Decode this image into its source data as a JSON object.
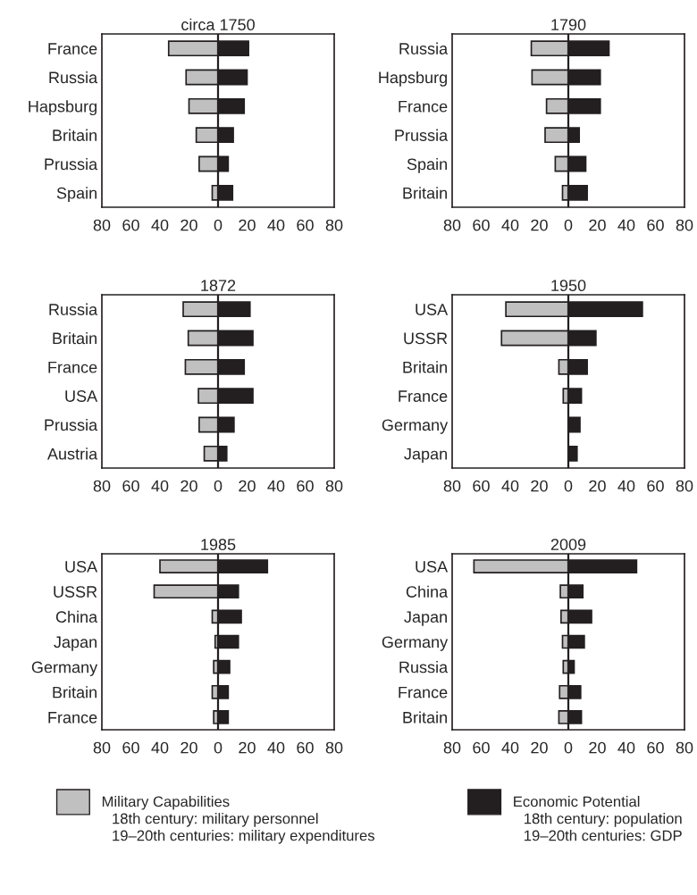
{
  "chart_data": [
    {
      "type": "bar",
      "orientation": "horizontal",
      "stacked": true,
      "title": "circa 1750",
      "categories": [
        "France",
        "Russia",
        "Hapsburg",
        "Britain",
        "Prussia",
        "Spain"
      ],
      "series": [
        {
          "name": "Military Capabilities",
          "color": "#c0c0c0",
          "values": [
            -34,
            -22,
            -20,
            -15,
            -13,
            -4
          ]
        },
        {
          "name": "Economic Potential",
          "color": "#231f20",
          "values": [
            21,
            20,
            18,
            10.5,
            7,
            10
          ]
        }
      ],
      "annotations": [
        "18th century: military personnel",
        "19–20th centuries: military expenditures",
        "18th century: population",
        "19–20th centuries: GDP"
      ],
      "xlim": [
        -80,
        80
      ],
      "xticks": [
        {
          "value": -80,
          "label": "80"
        },
        {
          "value": -60,
          "label": "60"
        },
        {
          "value": -40,
          "label": "40"
        },
        {
          "value": -20,
          "label": "20"
        },
        0,
        20,
        40,
        60,
        80
      ],
      "ref_lines": [
        {
          "axis": "x",
          "value": 0,
          "color": "#231f20"
        }
      ],
      "legend": "bottom"
    },
    {
      "type": "bar",
      "orientation": "horizontal",
      "stacked": true,
      "title": "1790",
      "categories": [
        "Russia",
        "Hapsburg",
        "France",
        "Prussia",
        "Spain",
        "Britain"
      ],
      "series": [
        {
          "color": "#c0c0c0",
          "values": [
            -25.5,
            -25,
            -15,
            -16,
            -9,
            -4
          ]
        },
        {
          "color": "#231f20",
          "values": [
            28,
            22,
            22,
            7.5,
            12,
            13
          ]
        }
      ],
      "xlim": [
        -80,
        80
      ],
      "xticks": [
        {
          "value": -80,
          "label": "80"
        },
        {
          "value": -60,
          "label": "60"
        },
        {
          "value": -40,
          "label": "40"
        },
        {
          "value": -20,
          "label": "20"
        },
        0,
        20,
        40,
        60,
        80
      ],
      "ref_lines": [
        {
          "axis": "x",
          "value": 0,
          "color": "#231f20"
        }
      ]
    },
    {
      "type": "bar",
      "orientation": "horizontal",
      "stacked": true,
      "title": "1872",
      "categories": [
        "Russia",
        "Britain",
        "France",
        "USA",
        "Prussia",
        "Austria"
      ],
      "series": [
        {
          "color": "#c0c0c0",
          "values": [
            -24,
            -20.5,
            -22.5,
            -13.5,
            -13,
            -9.5
          ]
        },
        {
          "color": "#231f20",
          "values": [
            22,
            24,
            18,
            24,
            11,
            6
          ]
        }
      ],
      "xlim": [
        -80,
        80
      ],
      "xticks": [
        {
          "value": -80,
          "label": "80"
        },
        {
          "value": -60,
          "label": "60"
        },
        {
          "value": -40,
          "label": "40"
        },
        {
          "value": -20,
          "label": "20"
        },
        0,
        20,
        40,
        60,
        80
      ],
      "ref_lines": [
        {
          "axis": "x",
          "value": 0,
          "color": "#231f20"
        }
      ]
    },
    {
      "type": "bar",
      "orientation": "horizontal",
      "stacked": true,
      "title": "1950",
      "categories": [
        "USA",
        "USSR",
        "Britain",
        "France",
        "Germany",
        "Japan"
      ],
      "series": [
        {
          "color": "#c0c0c0",
          "values": [
            -43,
            -46,
            -6.5,
            -3.5,
            null,
            null
          ]
        },
        {
          "color": "#231f20",
          "values": [
            51,
            19,
            13,
            9,
            8,
            6
          ]
        }
      ],
      "xlim": [
        -80,
        80
      ],
      "xticks": [
        {
          "value": -80,
          "label": "80"
        },
        {
          "value": -60,
          "label": "60"
        },
        {
          "value": -40,
          "label": "40"
        },
        {
          "value": -20,
          "label": "20"
        },
        0,
        20,
        40,
        60,
        80
      ],
      "ref_lines": [
        {
          "axis": "x",
          "value": 0,
          "color": "#231f20"
        }
      ]
    },
    {
      "type": "bar",
      "orientation": "horizontal",
      "stacked": true,
      "title": "1985",
      "categories": [
        "USA",
        "USSR",
        "China",
        "Japan",
        "Germany",
        "Britain",
        "France"
      ],
      "series": [
        {
          "color": "#c0c0c0",
          "values": [
            -40,
            -44,
            -4,
            -2,
            -3,
            -4,
            -3
          ]
        },
        {
          "color": "#231f20",
          "values": [
            34,
            14,
            16,
            14,
            8,
            7,
            7
          ]
        }
      ],
      "xlim": [
        -80,
        80
      ],
      "xticks": [
        {
          "value": -80,
          "label": "80"
        },
        {
          "value": -60,
          "label": "60"
        },
        {
          "value": -40,
          "label": "40"
        },
        {
          "value": -20,
          "label": "20"
        },
        0,
        20,
        40,
        60,
        80
      ],
      "ref_lines": [
        {
          "axis": "x",
          "value": 0,
          "color": "#231f20"
        }
      ]
    },
    {
      "type": "bar",
      "orientation": "horizontal",
      "stacked": true,
      "title": "2009",
      "categories": [
        "USA",
        "China",
        "Japan",
        "Germany",
        "Russia",
        "France",
        "Britain"
      ],
      "series": [
        {
          "color": "#c0c0c0",
          "values": [
            -65,
            -5.5,
            -5,
            -4,
            -3.5,
            -6,
            -6.5
          ]
        },
        {
          "color": "#231f20",
          "values": [
            47,
            10,
            16,
            11,
            4,
            8.5,
            9
          ]
        }
      ],
      "xlim": [
        -80,
        80
      ],
      "xticks": [
        {
          "value": -80,
          "label": "80"
        },
        {
          "value": -60,
          "label": "60"
        },
        {
          "value": -40,
          "label": "40"
        },
        {
          "value": -20,
          "label": "20"
        },
        0,
        20,
        40,
        60,
        80
      ],
      "ref_lines": [
        {
          "axis": "x",
          "value": 0,
          "color": "#231f20"
        }
      ]
    }
  ]
}
